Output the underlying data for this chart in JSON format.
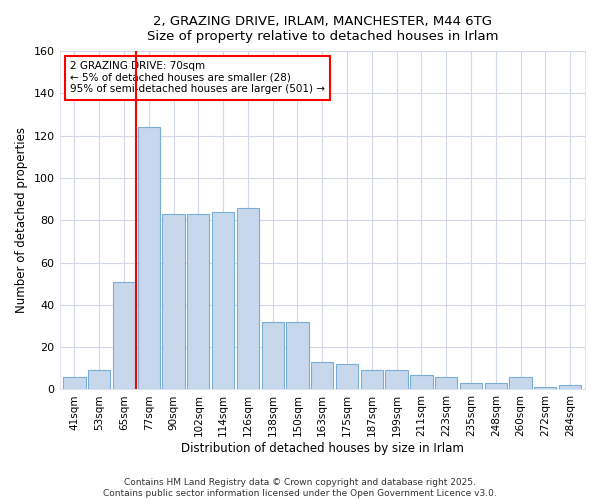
{
  "title_line1": "2, GRAZING DRIVE, IRLAM, MANCHESTER, M44 6TG",
  "title_line2": "Size of property relative to detached houses in Irlam",
  "xlabel": "Distribution of detached houses by size in Irlam",
  "ylabel": "Number of detached properties",
  "bar_labels": [
    "41sqm",
    "53sqm",
    "65sqm",
    "77sqm",
    "90sqm",
    "102sqm",
    "114sqm",
    "126sqm",
    "138sqm",
    "150sqm",
    "163sqm",
    "175sqm",
    "187sqm",
    "199sqm",
    "211sqm",
    "223sqm",
    "235sqm",
    "248sqm",
    "260sqm",
    "272sqm",
    "284sqm"
  ],
  "bar_values": [
    6,
    9,
    51,
    124,
    83,
    83,
    84,
    86,
    32,
    32,
    13,
    12,
    9,
    9,
    7,
    6,
    3,
    3,
    6,
    1,
    2
  ],
  "bar_color": "#c8d8ec",
  "bar_edge_color": "#7aaed4",
  "red_line_x": 3.0,
  "annotation_text": "2 GRAZING DRIVE: 70sqm\n← 5% of detached houses are smaller (28)\n95% of semi-detached houses are larger (501) →",
  "annotation_box_color": "white",
  "annotation_box_edge": "red",
  "ylim": [
    0,
    160
  ],
  "yticks": [
    0,
    20,
    40,
    60,
    80,
    100,
    120,
    140,
    160
  ],
  "footer_text": "Contains HM Land Registry data © Crown copyright and database right 2025.\nContains public sector information licensed under the Open Government Licence v3.0.",
  "background_color": "#ffffff",
  "plot_background": "#ffffff",
  "grid_color": "#d0d8e8"
}
